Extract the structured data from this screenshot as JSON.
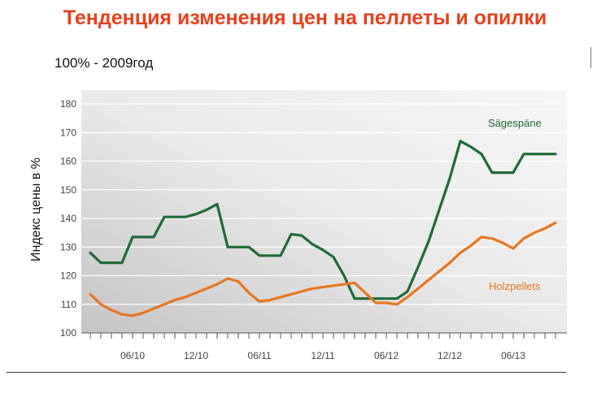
{
  "header": {
    "title": "Тенденция изменения цен на пеллеты и опилки",
    "subtitle": "100% - 2009год"
  },
  "chart_data": {
    "type": "line",
    "title": "Тенденция изменения цен на пеллеты и опилки",
    "subtitle": "100% - 2009год",
    "xlabel": "",
    "ylabel": "Индекс цены в %",
    "ylim": [
      100,
      180
    ],
    "yticks": [
      100,
      110,
      120,
      130,
      140,
      150,
      160,
      170,
      180
    ],
    "xticks": [
      "06/10",
      "12/10",
      "06/11",
      "12/11",
      "06/12",
      "12/12",
      "06/13"
    ],
    "x": [
      "02/10",
      "03/10",
      "04/10",
      "05/10",
      "06/10",
      "07/10",
      "08/10",
      "09/10",
      "10/10",
      "11/10",
      "12/10",
      "01/11",
      "02/11",
      "03/11",
      "04/11",
      "05/11",
      "06/11",
      "07/11",
      "08/11",
      "09/11",
      "10/11",
      "11/11",
      "12/11",
      "01/12",
      "02/12",
      "03/12",
      "04/12",
      "05/12",
      "06/12",
      "07/12",
      "08/12",
      "09/12",
      "10/12",
      "11/12",
      "12/12",
      "01/13",
      "02/13",
      "03/13",
      "04/13",
      "05/13",
      "06/13",
      "07/13",
      "08/13",
      "09/13",
      "10/13"
    ],
    "grid": true,
    "legend": "inline",
    "series": [
      {
        "name": "Sägespäne",
        "color": "#1e6b36",
        "values": [
          128,
          124.5,
          124.5,
          124.5,
          133.5,
          133.5,
          133.5,
          140.5,
          140.5,
          140.5,
          141.5,
          143,
          145,
          130,
          130,
          130,
          127,
          127,
          127,
          134.5,
          134,
          131,
          129,
          126.5,
          120,
          112,
          112,
          112,
          112,
          112,
          114.5,
          123,
          132,
          143,
          154,
          167,
          165,
          162.5,
          156,
          156,
          156,
          162.5,
          162.5,
          162.5,
          162.5
        ]
      },
      {
        "name": "Holzpellets",
        "color": "#e8761e",
        "values": [
          113.5,
          110,
          108,
          106.5,
          106,
          107,
          108.5,
          110,
          111.5,
          112.5,
          114,
          115.5,
          117,
          119,
          118,
          114,
          111,
          111.5,
          112.5,
          113.5,
          114.5,
          115.5,
          116,
          116.5,
          117,
          117.5,
          114,
          110.5,
          110.5,
          110,
          112.5,
          115.5,
          118.5,
          121.5,
          124.5,
          128,
          130.5,
          133.5,
          133,
          131.5,
          129.5,
          133,
          135,
          136.5,
          138.5
        ]
      }
    ]
  }
}
